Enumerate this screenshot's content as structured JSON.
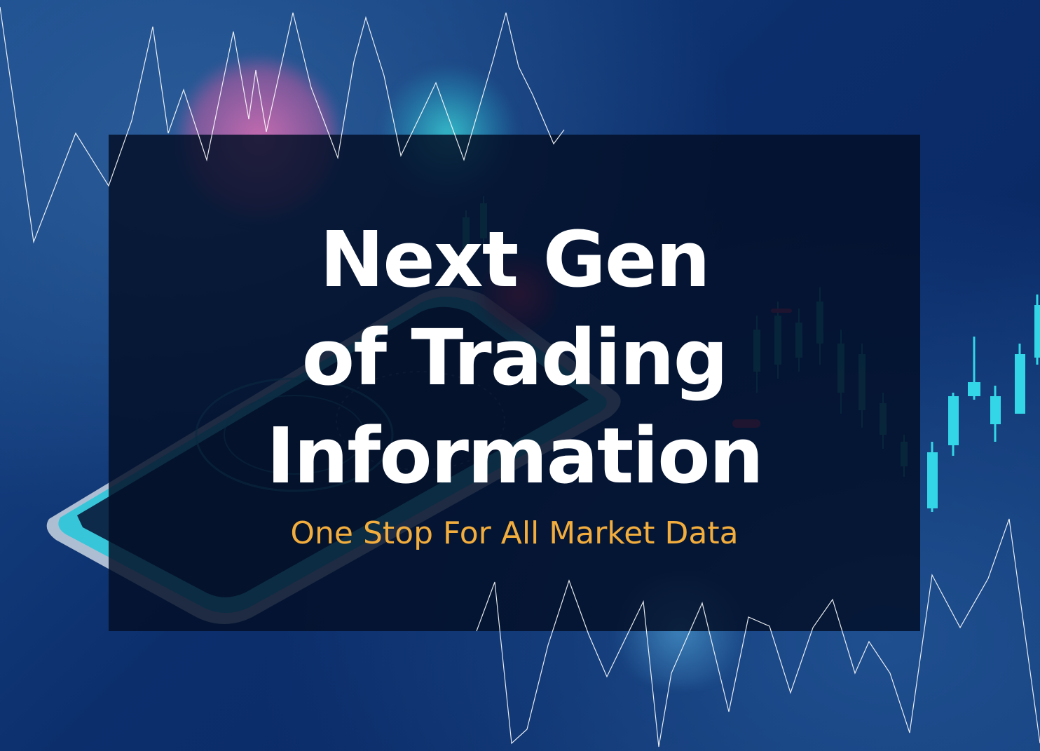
{
  "headline": {
    "line1": "Next Gen",
    "line2": "of Trading",
    "line3": "Information"
  },
  "tagline": "One Stop For All Market Data",
  "colors": {
    "background": "#0c2f6c",
    "overlay": "#020e26",
    "headline": "#ffffff",
    "tagline": "#f2ad3d",
    "candle_teal": "#33d6e6",
    "candle_red": "#e8365d",
    "line": "#ffffff"
  }
}
